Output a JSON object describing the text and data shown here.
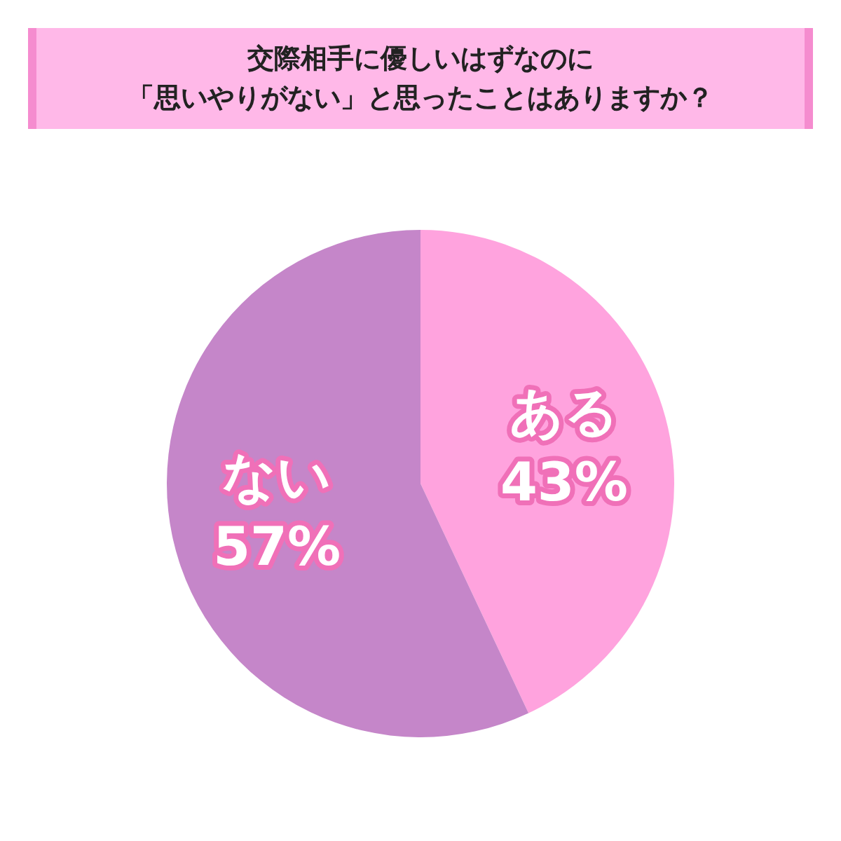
{
  "chart_data": {
    "type": "pie",
    "title": "交際相手に優しいはずなのに",
    "subtitle": "「思いやりがない」と思ったことはありますか？",
    "categories": [
      "ある",
      "ない"
    ],
    "values": [
      43,
      57
    ],
    "colors": [
      "#ffa3de",
      "#c586c9"
    ],
    "value_labels": [
      "43%",
      "57%"
    ],
    "legend": false
  }
}
